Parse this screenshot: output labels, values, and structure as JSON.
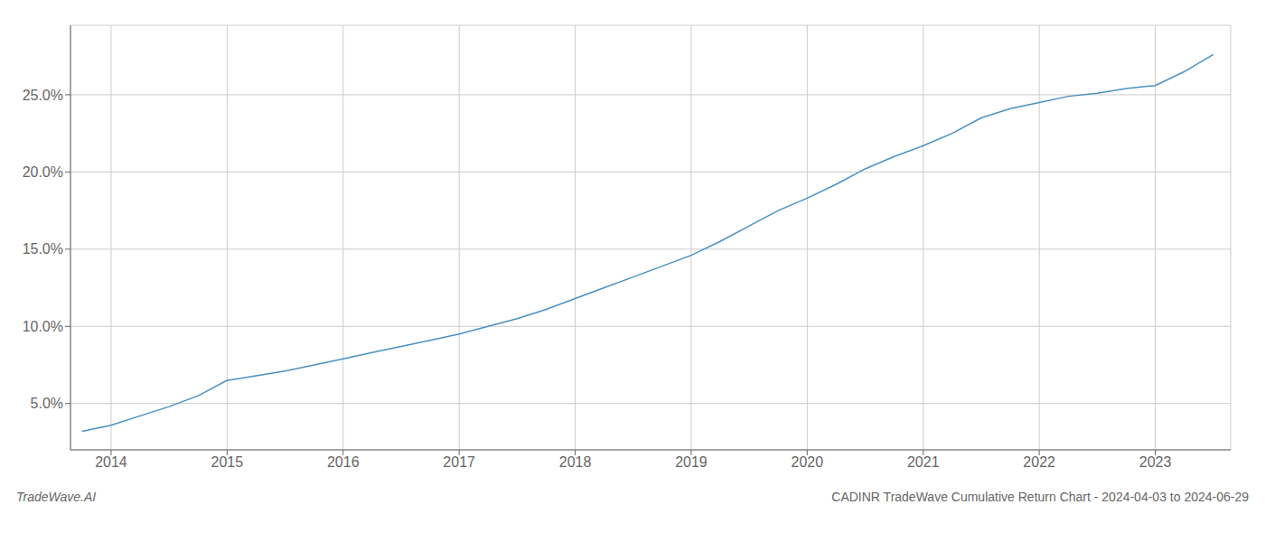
{
  "chart_data": {
    "type": "line",
    "title": "CADINR TradeWave Cumulative Return Chart - 2024-04-03 to 2024-06-29",
    "annotations": [
      "TradeWave.AI"
    ],
    "x": [
      2013.75,
      2014.0,
      2014.25,
      2014.5,
      2014.75,
      2015.0,
      2015.25,
      2015.5,
      2015.75,
      2016.0,
      2016.25,
      2016.5,
      2016.75,
      2017.0,
      2017.25,
      2017.5,
      2017.75,
      2018.0,
      2018.25,
      2018.5,
      2018.75,
      2019.0,
      2019.25,
      2019.5,
      2019.75,
      2020.0,
      2020.25,
      2020.5,
      2020.75,
      2021.0,
      2021.25,
      2021.5,
      2021.75,
      2022.0,
      2022.25,
      2022.5,
      2022.75,
      2023.0,
      2023.25,
      2023.5
    ],
    "values": [
      3.2,
      3.6,
      4.2,
      4.8,
      5.5,
      6.5,
      6.8,
      7.1,
      7.5,
      7.9,
      8.3,
      8.7,
      9.1,
      9.5,
      10.0,
      10.5,
      11.1,
      11.8,
      12.5,
      13.2,
      13.9,
      14.6,
      15.5,
      16.5,
      17.5,
      18.3,
      19.2,
      20.2,
      21.0,
      21.7,
      22.5,
      23.5,
      24.1,
      24.5,
      24.9,
      25.1,
      25.4,
      25.6,
      26.5,
      27.6
    ],
    "color": "#4a90c4",
    "xlim": [
      2013.65,
      2023.65
    ],
    "xticks": [
      2014,
      2015,
      2016,
      2017,
      2018,
      2019,
      2020,
      2021,
      2022,
      2023
    ],
    "ylim": [
      2.0,
      29.5
    ],
    "yticks": [
      {
        "value": 5.0,
        "label": "5.0%"
      },
      {
        "value": 10.0,
        "label": "10.0%"
      },
      {
        "value": 15.0,
        "label": "15.0%"
      },
      {
        "value": 20.0,
        "label": "20.0%"
      },
      {
        "value": 25.0,
        "label": "25.0%"
      }
    ],
    "grid": true
  }
}
